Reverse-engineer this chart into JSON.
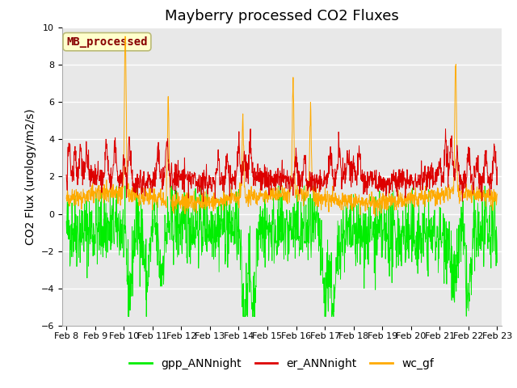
{
  "title": "Mayberry processed CO2 Fluxes",
  "ylabel": "CO2 Flux (urology/m2/s)",
  "ylim": [
    -6,
    10
  ],
  "yticks": [
    -6,
    -4,
    -2,
    0,
    2,
    4,
    6,
    8,
    10
  ],
  "xlim_days": [
    7.85,
    23.15
  ],
  "xtick_labels": [
    "Feb 8",
    "Feb 9",
    "Feb 10",
    "Feb 11",
    "Feb 12",
    "Feb 13",
    "Feb 14",
    "Feb 15",
    "Feb 16",
    "Feb 17",
    "Feb 18",
    "Feb 19",
    "Feb 20",
    "Feb 21",
    "Feb 22",
    "Feb 23"
  ],
  "xtick_positions": [
    8,
    9,
    10,
    11,
    12,
    13,
    14,
    15,
    16,
    17,
    18,
    19,
    20,
    21,
    22,
    23
  ],
  "colors": {
    "gpp": "#00ee00",
    "er": "#dd0000",
    "wc": "#ffaa00"
  },
  "legend_labels": [
    "gpp_ANNnight",
    "er_ANNnight",
    "wc_gf"
  ],
  "box_label": "MB_processed",
  "box_color": "#ffffcc",
  "box_edge_color": "#bbbb77",
  "box_text_color": "#880000",
  "bg_color": "#e8e8e8",
  "fig_bg": "#ffffff",
  "title_fontsize": 13,
  "label_fontsize": 10,
  "tick_fontsize": 8,
  "legend_fontsize": 10,
  "seed": 42,
  "n_points": 1536
}
